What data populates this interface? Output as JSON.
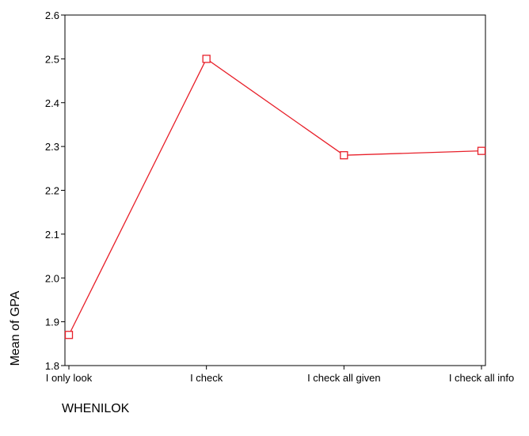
{
  "chart_data": {
    "type": "line",
    "title": "",
    "xlabel": "WHENILOK",
    "ylabel": "Mean of GPA",
    "categories": [
      "I only look",
      "I check",
      "I check all given",
      "I check all info"
    ],
    "series": [
      {
        "values": [
          1.87,
          2.5,
          2.28,
          2.29
        ]
      }
    ],
    "ylim": [
      1.8,
      2.6
    ],
    "yticks": [
      "1.8",
      "1.9",
      "2.0",
      "2.1",
      "2.2",
      "2.3",
      "2.4",
      "2.5",
      "2.6"
    ],
    "grid": false,
    "marker": "open-square",
    "colors": {
      "line": "#e8202a",
      "axis": "#000000"
    }
  }
}
